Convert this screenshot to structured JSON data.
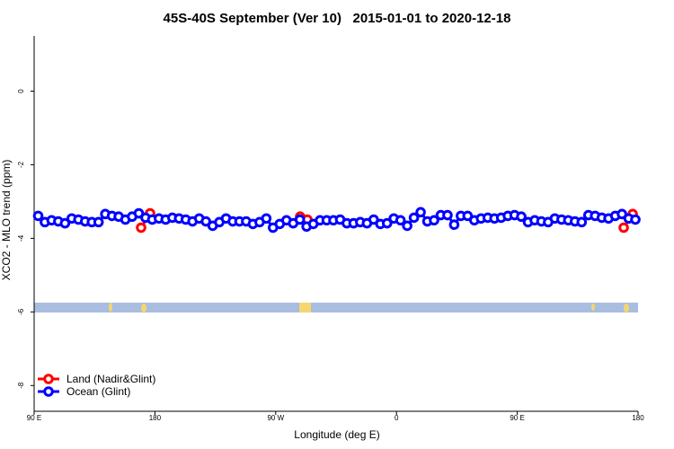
{
  "chart_data": {
    "type": "line",
    "title": "45S-40S September (Ver 10)   2015-01-01 to 2020-12-18",
    "x_label": "Longitude (deg E)",
    "y_label": "XCO2 - MLO trend (ppm)",
    "xlim": [
      90,
      540
    ],
    "ylim": [
      -8.7,
      1.5
    ],
    "xticks": [
      {
        "value": 90,
        "label": "90 E"
      },
      {
        "value": 180,
        "label": "180"
      },
      {
        "value": 270,
        "label": "90 W"
      },
      {
        "value": 360,
        "label": "0"
      },
      {
        "value": 450,
        "label": "90 E"
      },
      {
        "value": 540,
        "label": "180"
      }
    ],
    "yticks": [
      0,
      -2,
      -4,
      -6,
      -8
    ],
    "legend_position": "bottom-left",
    "series": [
      {
        "name": "Land (Nadir&Glint)",
        "color": "#ff0000",
        "x": [
          169.7,
          176.4,
          null,
          288.2,
          293.6,
          null,
          529.3,
          536
        ],
        "values": [
          -3.71,
          -3.32,
          null,
          -3.41,
          -3.49,
          null,
          -3.71,
          -3.34
        ]
      },
      {
        "name": "Ocean (Glint)",
        "color": "#0000ff",
        "x": [
          93,
          98,
          103,
          108,
          113,
          118,
          123,
          128,
          133,
          138,
          143,
          148,
          153,
          158,
          163,
          168,
          173,
          178,
          183,
          188,
          193,
          198,
          203,
          208,
          213,
          218,
          223,
          228,
          233,
          238,
          243,
          248,
          253,
          258,
          263,
          268,
          273,
          278,
          283,
          288,
          293,
          298,
          303,
          308,
          313,
          318,
          323,
          328,
          333,
          338,
          343,
          348,
          353,
          358,
          363,
          368,
          373,
          378,
          383,
          388,
          393,
          398,
          403,
          408,
          413,
          418,
          423,
          428,
          433,
          438,
          443,
          448,
          453,
          458,
          463,
          468,
          473,
          478,
          483,
          488,
          493,
          498,
          503,
          508,
          513,
          518,
          523,
          528,
          533,
          538
        ],
        "values": [
          -3.39,
          -3.56,
          -3.51,
          -3.54,
          -3.59,
          -3.46,
          -3.49,
          -3.54,
          -3.56,
          -3.56,
          -3.34,
          -3.39,
          -3.41,
          -3.49,
          -3.41,
          -3.32,
          -3.44,
          -3.49,
          -3.46,
          -3.49,
          -3.44,
          -3.46,
          -3.49,
          -3.54,
          -3.46,
          -3.54,
          -3.66,
          -3.56,
          -3.46,
          -3.54,
          -3.54,
          -3.54,
          -3.61,
          -3.56,
          -3.46,
          -3.71,
          -3.61,
          -3.51,
          -3.59,
          -3.49,
          -3.68,
          -3.61,
          -3.51,
          -3.51,
          -3.51,
          -3.49,
          -3.59,
          -3.59,
          -3.56,
          -3.59,
          -3.49,
          -3.61,
          -3.59,
          -3.46,
          -3.51,
          -3.66,
          -3.44,
          -3.29,
          -3.54,
          -3.51,
          -3.37,
          -3.37,
          -3.63,
          -3.39,
          -3.39,
          -3.51,
          -3.46,
          -3.44,
          -3.46,
          -3.44,
          -3.39,
          -3.37,
          -3.41,
          -3.56,
          -3.51,
          -3.54,
          -3.56,
          -3.46,
          -3.49,
          -3.51,
          -3.54,
          -3.56,
          -3.37,
          -3.39,
          -3.44,
          -3.46,
          -3.39,
          -3.34,
          -3.46,
          -3.49
        ]
      }
    ]
  }
}
